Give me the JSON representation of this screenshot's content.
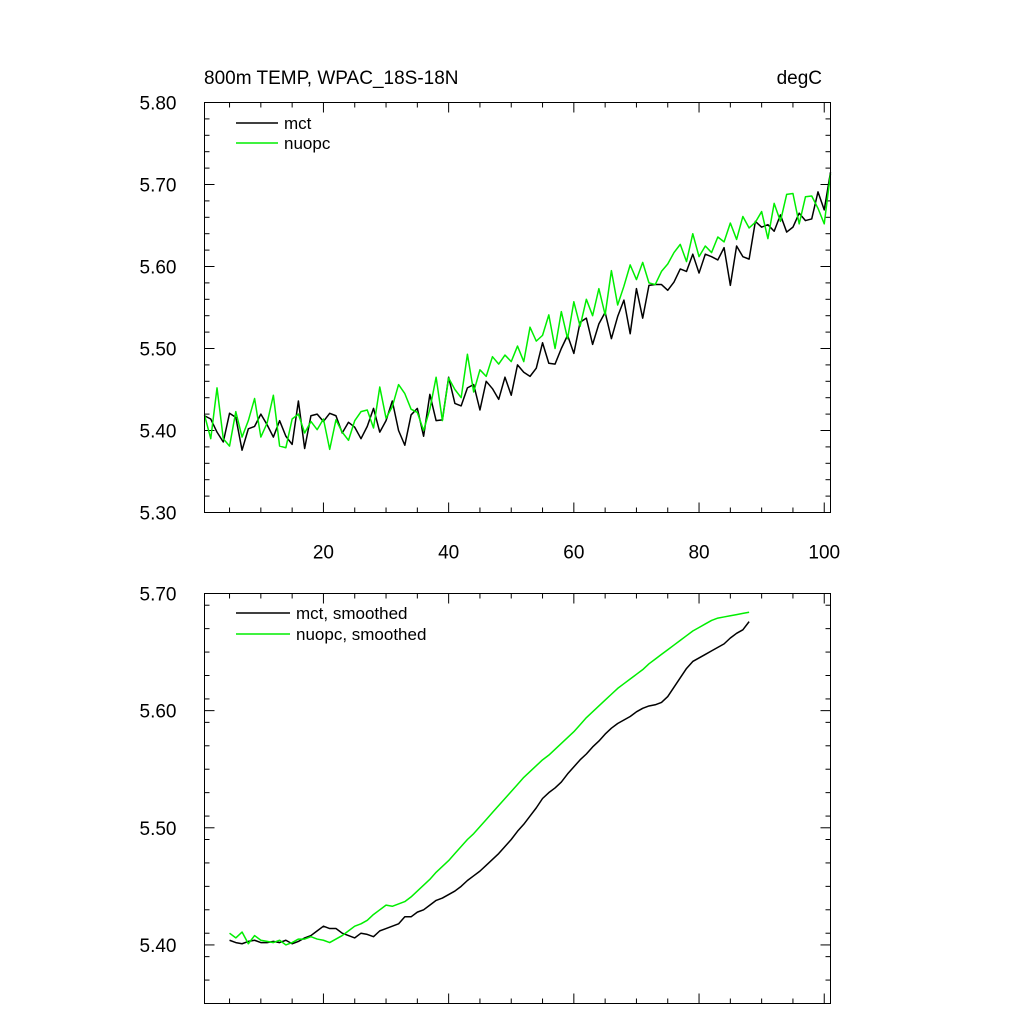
{
  "chart_data": [
    {
      "type": "line",
      "title": "800m TEMP, WPAC_18S-18N",
      "units": "degC",
      "xlim": [
        1,
        101
      ],
      "ylim": [
        5.3,
        5.8
      ],
      "xticks": [
        20,
        40,
        60,
        80,
        100
      ],
      "yticks": [
        5.3,
        5.4,
        5.5,
        5.6,
        5.7,
        5.8
      ],
      "ytick_labels": [
        "5.30",
        "5.40",
        "5.50",
        "5.60",
        "5.70",
        "5.80"
      ],
      "xtick_labels": [
        "20",
        "40",
        "60",
        "80",
        "100"
      ],
      "legend_position": "top-left",
      "series": [
        {
          "name": "mct",
          "color": "#000000",
          "values": [
            5.418,
            5.414,
            5.398,
            5.386,
            5.421,
            5.416,
            5.376,
            5.402,
            5.405,
            5.42,
            5.407,
            5.392,
            5.412,
            5.393,
            5.383,
            5.436,
            5.378,
            5.418,
            5.42,
            5.411,
            5.421,
            5.418,
            5.397,
            5.41,
            5.404,
            5.39,
            5.405,
            5.427,
            5.398,
            5.412,
            5.436,
            5.4,
            5.382,
            5.419,
            5.427,
            5.393,
            5.444,
            5.412,
            5.413,
            5.465,
            5.433,
            5.43,
            5.452,
            5.456,
            5.425,
            5.46,
            5.451,
            5.438,
            5.465,
            5.443,
            5.48,
            5.471,
            5.466,
            5.476,
            5.507,
            5.482,
            5.481,
            5.5,
            5.516,
            5.494,
            5.532,
            5.537,
            5.505,
            5.53,
            5.544,
            5.512,
            5.539,
            5.559,
            5.518,
            5.573,
            5.537,
            5.577,
            5.578,
            5.578,
            5.571,
            5.581,
            5.597,
            5.594,
            5.615,
            5.592,
            5.615,
            5.612,
            5.608,
            5.623,
            5.577,
            5.625,
            5.612,
            5.609,
            5.655,
            5.648,
            5.651,
            5.643,
            5.663,
            5.642,
            5.648,
            5.665,
            5.656,
            5.658,
            5.691,
            5.669,
            5.715
          ]
        },
        {
          "name": "nuopc",
          "color": "#00ee00",
          "values": [
            5.419,
            5.39,
            5.452,
            5.39,
            5.381,
            5.423,
            5.392,
            5.412,
            5.439,
            5.392,
            5.409,
            5.443,
            5.381,
            5.379,
            5.414,
            5.42,
            5.397,
            5.411,
            5.401,
            5.414,
            5.377,
            5.413,
            5.398,
            5.388,
            5.412,
            5.423,
            5.425,
            5.403,
            5.453,
            5.415,
            5.429,
            5.456,
            5.445,
            5.426,
            5.422,
            5.4,
            5.426,
            5.465,
            5.412,
            5.464,
            5.45,
            5.44,
            5.493,
            5.447,
            5.474,
            5.466,
            5.49,
            5.481,
            5.492,
            5.484,
            5.503,
            5.484,
            5.526,
            5.509,
            5.516,
            5.541,
            5.5,
            5.545,
            5.512,
            5.557,
            5.527,
            5.56,
            5.54,
            5.573,
            5.541,
            5.595,
            5.553,
            5.576,
            5.602,
            5.584,
            5.605,
            5.58,
            5.578,
            5.594,
            5.603,
            5.617,
            5.627,
            5.606,
            5.64,
            5.612,
            5.625,
            5.617,
            5.636,
            5.63,
            5.653,
            5.633,
            5.661,
            5.647,
            5.654,
            5.667,
            5.634,
            5.677,
            5.655,
            5.688,
            5.689,
            5.652,
            5.685,
            5.686,
            5.671,
            5.652,
            5.713
          ]
        }
      ]
    },
    {
      "type": "line",
      "title": "",
      "xlim": [
        1,
        101
      ],
      "ylim": [
        5.35,
        5.7
      ],
      "xticks": [
        20,
        40,
        60,
        80,
        100
      ],
      "yticks": [
        5.4,
        5.5,
        5.6,
        5.7
      ],
      "ytick_labels": [
        "5.40",
        "5.50",
        "5.60",
        "5.70"
      ],
      "legend_position": "top-left",
      "series": [
        {
          "name": "mct, smoothed",
          "color": "#000000",
          "x_start": 5,
          "values": [
            5.404,
            5.402,
            5.401,
            5.403,
            5.404,
            5.402,
            5.402,
            5.403,
            5.402,
            5.404,
            5.401,
            5.403,
            5.406,
            5.408,
            5.412,
            5.416,
            5.414,
            5.414,
            5.41,
            5.408,
            5.406,
            5.41,
            5.409,
            5.407,
            5.412,
            5.414,
            5.416,
            5.418,
            5.424,
            5.424,
            5.428,
            5.43,
            5.434,
            5.438,
            5.44,
            5.443,
            5.446,
            5.45,
            5.455,
            5.459,
            5.463,
            5.468,
            5.473,
            5.478,
            5.484,
            5.49,
            5.497,
            5.503,
            5.51,
            5.517,
            5.525,
            5.53,
            5.534,
            5.539,
            5.546,
            5.552,
            5.558,
            5.563,
            5.569,
            5.574,
            5.58,
            5.585,
            5.589,
            5.592,
            5.595,
            5.599,
            5.602,
            5.604,
            5.605,
            5.607,
            5.612,
            5.62,
            5.628,
            5.636,
            5.642,
            5.645,
            5.648,
            5.651,
            5.654,
            5.657,
            5.662,
            5.666,
            5.669,
            5.676
          ]
        },
        {
          "name": "nuopc, smoothed",
          "color": "#00ee00",
          "x_start": 5,
          "values": [
            5.41,
            5.406,
            5.411,
            5.401,
            5.408,
            5.404,
            5.403,
            5.402,
            5.404,
            5.4,
            5.402,
            5.405,
            5.405,
            5.407,
            5.405,
            5.404,
            5.402,
            5.405,
            5.408,
            5.412,
            5.416,
            5.418,
            5.421,
            5.426,
            5.43,
            5.434,
            5.433,
            5.435,
            5.437,
            5.441,
            5.446,
            5.451,
            5.456,
            5.462,
            5.467,
            5.472,
            5.478,
            5.484,
            5.49,
            5.495,
            5.501,
            5.507,
            5.513,
            5.519,
            5.525,
            5.531,
            5.537,
            5.543,
            5.548,
            5.553,
            5.558,
            5.562,
            5.567,
            5.572,
            5.577,
            5.582,
            5.588,
            5.594,
            5.599,
            5.604,
            5.609,
            5.614,
            5.619,
            5.623,
            5.627,
            5.631,
            5.635,
            5.64,
            5.644,
            5.648,
            5.652,
            5.656,
            5.66,
            5.664,
            5.668,
            5.671,
            5.674,
            5.677,
            5.679,
            5.68,
            5.681,
            5.682,
            5.683,
            5.684
          ]
        }
      ]
    }
  ]
}
